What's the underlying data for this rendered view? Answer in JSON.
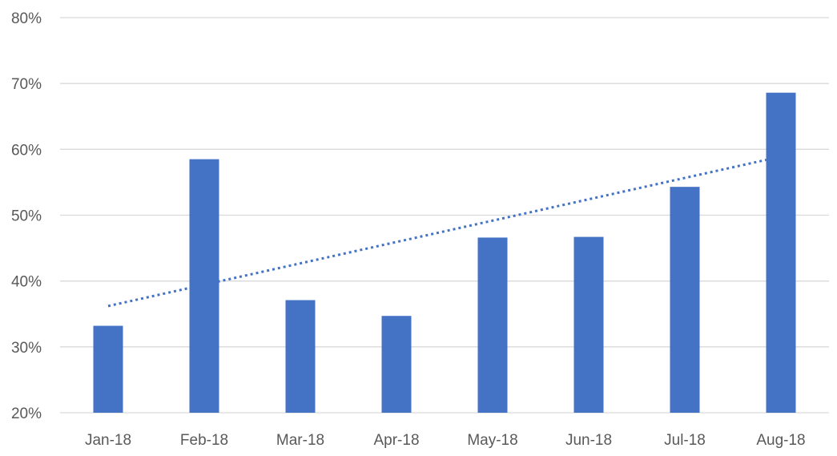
{
  "chart_data": {
    "type": "bar",
    "title": "",
    "xlabel": "",
    "ylabel": "",
    "categories": [
      "Jan-18",
      "Feb-18",
      "Mar-18",
      "Apr-18",
      "May-18",
      "Jun-18",
      "Jul-18",
      "Aug-18"
    ],
    "series": [
      {
        "values": [
          33.2,
          58.5,
          37.1,
          34.7,
          46.6,
          46.7,
          54.3,
          68.6
        ]
      }
    ],
    "trendline": {
      "type": "linear",
      "style": "dotted",
      "start": 36.2,
      "end": 58.4
    },
    "ylim": [
      20,
      80
    ],
    "yticks": [
      20,
      30,
      40,
      50,
      60,
      70,
      80
    ],
    "ytick_labels": [
      "20%",
      "30%",
      "40%",
      "50%",
      "60%",
      "70%",
      "80%"
    ],
    "grid": true,
    "legend": "none",
    "colors": {
      "bar": "#4472C4",
      "trendline": "#4472C4",
      "grid": "#D9D9D9",
      "text": "#595959"
    }
  }
}
